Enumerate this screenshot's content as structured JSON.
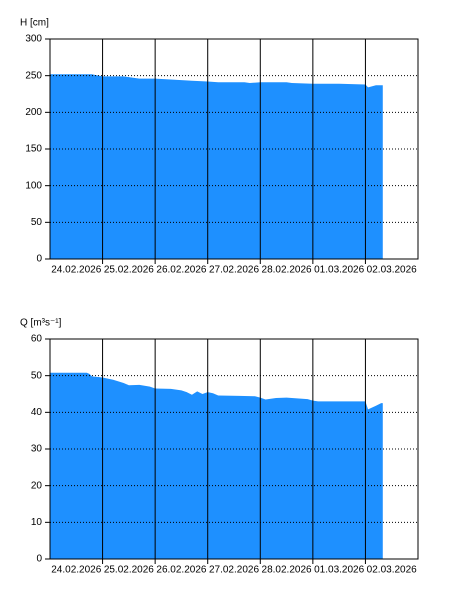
{
  "chart_data": [
    {
      "type": "area",
      "title": "H [cm]",
      "x": [
        0,
        0.8,
        0.85,
        1.0,
        1.4,
        1.6,
        1.7,
        2.0,
        2.5,
        2.7,
        3.0,
        3.2,
        3.7,
        3.8,
        4.0,
        4.5,
        4.6,
        5.0,
        5.5,
        6.0,
        6.05,
        6.2,
        6.33
      ],
      "values": [
        252,
        252,
        251,
        249,
        249,
        247,
        246,
        246,
        244,
        243,
        242,
        241,
        241,
        240,
        241,
        241,
        240,
        239,
        239,
        238,
        234,
        237,
        237
      ],
      "color": "#1e90ff",
      "xlim": [
        0,
        7
      ],
      "ylim": [
        0,
        300
      ],
      "yticks": [
        0,
        50,
        100,
        150,
        200,
        250,
        300
      ],
      "xticks": [
        {
          "value": 0.5,
          "label": "24.02.2026"
        },
        {
          "value": 1.5,
          "label": "25.02.2026"
        },
        {
          "value": 2.5,
          "label": "26.02.2026"
        },
        {
          "value": 3.5,
          "label": "27.02.2026"
        },
        {
          "value": 4.5,
          "label": "28.02.2026"
        },
        {
          "value": 5.5,
          "label": "01.03.2026"
        },
        {
          "value": 6.5,
          "label": "02.03.2026"
        }
      ],
      "xgrid": [
        1,
        2,
        3,
        4,
        5,
        6
      ],
      "grid": true
    },
    {
      "type": "area",
      "title": "Q [m³s⁻¹]",
      "x": [
        0,
        0.7,
        0.75,
        0.8,
        1.0,
        1.2,
        1.4,
        1.5,
        1.7,
        1.9,
        2.0,
        2.3,
        2.5,
        2.6,
        2.7,
        2.8,
        2.9,
        3.0,
        3.1,
        3.2,
        3.6,
        3.9,
        4.0,
        4.1,
        4.3,
        4.5,
        4.7,
        4.9,
        5.0,
        5.1,
        6.0,
        6.05,
        6.2,
        6.3,
        6.33
      ],
      "values": [
        50.8,
        50.8,
        50.5,
        49.8,
        49.5,
        48.9,
        48,
        47.4,
        47.5,
        47,
        46.5,
        46.4,
        46,
        45.5,
        44.8,
        45.7,
        45,
        45.5,
        45.2,
        44.6,
        44.5,
        44.4,
        44,
        43.5,
        43.9,
        44,
        43.8,
        43.6,
        43.2,
        43,
        43,
        40.8,
        41.8,
        42.5,
        42.5
      ],
      "color": "#1e90ff",
      "xlim": [
        0,
        7
      ],
      "ylim": [
        0,
        60
      ],
      "yticks": [
        0,
        10,
        20,
        30,
        40,
        50,
        60
      ],
      "xticks": [
        {
          "value": 0.5,
          "label": "24.02.2026"
        },
        {
          "value": 1.5,
          "label": "25.02.2026"
        },
        {
          "value": 2.5,
          "label": "26.02.2026"
        },
        {
          "value": 3.5,
          "label": "27.02.2026"
        },
        {
          "value": 4.5,
          "label": "28.02.2026"
        },
        {
          "value": 5.5,
          "label": "01.03.2026"
        },
        {
          "value": 6.5,
          "label": "02.03.2026"
        }
      ],
      "xgrid": [
        1,
        2,
        3,
        4,
        5,
        6
      ],
      "grid": true
    }
  ]
}
